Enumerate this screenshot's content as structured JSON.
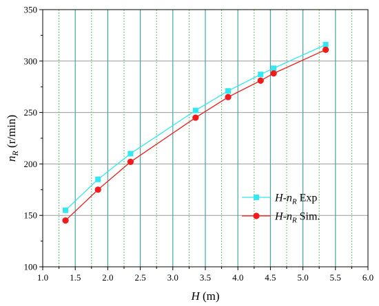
{
  "chart_data": {
    "type": "line",
    "xlabel": {
      "var": "H",
      "unit": " (m)"
    },
    "ylabel": {
      "var": "n",
      "sub": "R",
      "unit": " (r/min)"
    },
    "xlim": [
      1.0,
      6.0
    ],
    "ylim": [
      100,
      350
    ],
    "xticks": [
      "1.0",
      "1.5",
      "2.0",
      "2.5",
      "3.0",
      "3.5",
      "4.0",
      "4.5",
      "5.0",
      "5.5",
      "6.0"
    ],
    "yticks": [
      "100",
      "150",
      "200",
      "250",
      "300",
      "350"
    ],
    "grid": true,
    "legend_position": "bottom-right",
    "series": [
      {
        "name": "H-nR Exp",
        "legend": {
          "a": "H",
          "dash": "-",
          "b": "n",
          "sub": "R",
          "rest": " Exp"
        },
        "color": "#33e8f0",
        "marker": "square",
        "x": [
          1.35,
          1.85,
          2.35,
          3.35,
          3.85,
          4.35,
          4.55,
          5.35
        ],
        "y": [
          155,
          185,
          210,
          252,
          271,
          287,
          293,
          316
        ]
      },
      {
        "name": "H-nR Sim.",
        "legend": {
          "a": "H",
          "dash": "-",
          "b": "n",
          "sub": "R",
          "rest": " Sim."
        },
        "color": "#f21a1a",
        "marker": "circle",
        "x": [
          1.35,
          1.85,
          2.35,
          3.35,
          3.85,
          4.35,
          4.55,
          5.35
        ],
        "y": [
          145,
          175,
          202,
          245,
          265,
          281,
          288,
          311
        ]
      }
    ]
  }
}
